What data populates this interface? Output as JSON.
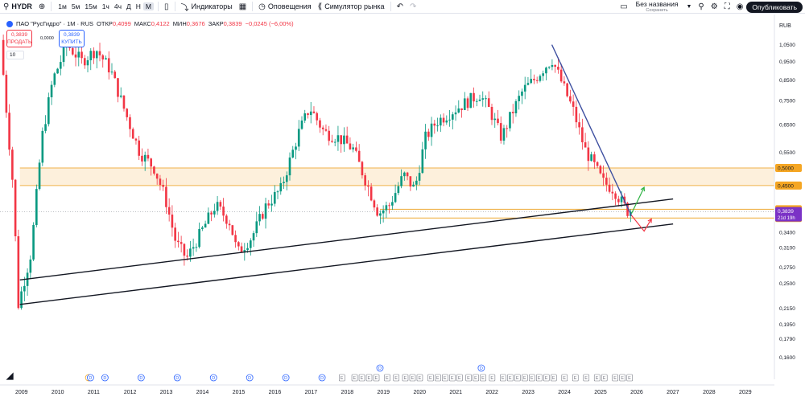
{
  "toolbar": {
    "symbol": "HYDR",
    "intervals": [
      "1м",
      "5м",
      "15м",
      "1ч",
      "4ч",
      "Д",
      "Н",
      "М"
    ],
    "active_interval": "М",
    "indicators_label": "Индикаторы",
    "alerts_label": "Оповещения",
    "replay_label": "Симулятор рынка",
    "layout_name": "Без названия",
    "layout_status": "Сохранить",
    "publish_label": "Опубликовать",
    "icons": [
      "plus-icon",
      "bar-style-icon",
      "indicators-icon",
      "templates-icon",
      "alert-icon",
      "replay-icon",
      "undo-icon",
      "redo-icon",
      "layout-icon",
      "search-icon",
      "settings-icon",
      "camera-icon"
    ]
  },
  "legend": {
    "title": "ПАО \"РусГидро\" · 1M · RUS",
    "open_label": "ОТКР",
    "open": "0,4099",
    "high_label": "МАКС",
    "high": "0,4122",
    "low_label": "МИН",
    "low": "0,3676",
    "close_label": "ЗАКР",
    "close": "0,3839",
    "change": "−0,0245 (−6,00%)",
    "sell_price": "0,3839",
    "sell_label": "ПРОДАТЬ",
    "spread": "0,0000",
    "buy_price": "0,3839",
    "buy_label": "КУПИТЬ",
    "volume_value": "10"
  },
  "colors": {
    "up": "#089981",
    "down": "#f23645",
    "zone_fill": "#fdf0dc",
    "zone_line": "#f0b24a",
    "downtrend_line": "#3d4fa0",
    "support_line": "#131722",
    "last_price": "#7b32c6",
    "arrow_up": "#2fb344",
    "arrow_down": "#f23645"
  },
  "chart_data": {
    "type": "candlestick",
    "currency": "RUB",
    "scale": "log",
    "ylim": [
      0.15,
      1.2
    ],
    "y_ticks": [
      "1,0500",
      "0,9500",
      "0,8500",
      "0,7500",
      "0,6500",
      "0,5500",
      "0,4500",
      "0,3900",
      "0,3400",
      "0,3100",
      "0,2750",
      "0,2500",
      "0,2150",
      "0,1950",
      "0,1790",
      "0,1600"
    ],
    "x_ticks": [
      "2009",
      "2010",
      "2011",
      "2012",
      "2013",
      "2014",
      "2015",
      "2016",
      "2017",
      "2018",
      "2019",
      "2020",
      "2021",
      "2022",
      "2023",
      "2024",
      "2025",
      "2026",
      "2027",
      "2028",
      "2029"
    ],
    "x_range": [
      2008.4,
      2029.8
    ],
    "key_points": [
      [
        2008.45,
        1.08
      ],
      [
        2008.8,
        0.45
      ],
      [
        2008.95,
        0.22
      ],
      [
        2009.3,
        0.3
      ],
      [
        2009.6,
        0.6
      ],
      [
        2009.9,
        0.85
      ],
      [
        2010.3,
        1.05
      ],
      [
        2010.7,
        0.95
      ],
      [
        2011.1,
        1.02
      ],
      [
        2011.5,
        0.9
      ],
      [
        2011.9,
        0.7
      ],
      [
        2012.3,
        0.55
      ],
      [
        2012.7,
        0.5
      ],
      [
        2013.0,
        0.42
      ],
      [
        2013.3,
        0.32
      ],
      [
        2013.6,
        0.29
      ],
      [
        2014.0,
        0.34
      ],
      [
        2014.4,
        0.4
      ],
      [
        2014.8,
        0.36
      ],
      [
        2015.0,
        0.3
      ],
      [
        2015.4,
        0.33
      ],
      [
        2015.8,
        0.4
      ],
      [
        2016.2,
        0.44
      ],
      [
        2016.7,
        0.62
      ],
      [
        2017.0,
        0.72
      ],
      [
        2017.4,
        0.62
      ],
      [
        2017.8,
        0.6
      ],
      [
        2018.2,
        0.56
      ],
      [
        2018.6,
        0.45
      ],
      [
        2018.9,
        0.38
      ],
      [
        2019.2,
        0.4
      ],
      [
        2019.6,
        0.48
      ],
      [
        2019.9,
        0.44
      ],
      [
        2020.2,
        0.6
      ],
      [
        2020.5,
        0.66
      ],
      [
        2020.9,
        0.7
      ],
      [
        2021.3,
        0.74
      ],
      [
        2021.7,
        0.78
      ],
      [
        2022.0,
        0.7
      ],
      [
        2022.3,
        0.6
      ],
      [
        2022.6,
        0.7
      ],
      [
        2022.9,
        0.8
      ],
      [
        2023.2,
        0.85
      ],
      [
        2023.5,
        0.92
      ],
      [
        2023.7,
        0.96
      ],
      [
        2024.0,
        0.82
      ],
      [
        2024.3,
        0.7
      ],
      [
        2024.6,
        0.56
      ],
      [
        2024.9,
        0.5
      ],
      [
        2025.1,
        0.46
      ],
      [
        2025.4,
        0.44
      ],
      [
        2025.6,
        0.41
      ],
      [
        2025.8,
        0.384
      ]
    ],
    "zones": [
      {
        "from": 0.45,
        "to": 0.5
      }
    ],
    "hlines": [
      {
        "value": 0.39,
        "label": "0,3900"
      },
      {
        "value": 0.37,
        "label": "0,3700"
      }
    ],
    "price_labels": [
      {
        "value": 0.5,
        "label": "0,5000"
      },
      {
        "value": 0.45,
        "label": "0,4500"
      },
      {
        "value": 0.39,
        "label": "0,3900"
      },
      {
        "value": 0.37,
        "label": "0,3700"
      }
    ],
    "last_price": {
      "value": 0.3839,
      "label": "0,3839",
      "countdown": "21d 19h"
    },
    "trendlines": [
      {
        "name": "downtrend",
        "from": [
          2023.65,
          1.05
        ],
        "to": [
          2025.85,
          0.375
        ]
      },
      {
        "name": "support-upper",
        "from": [
          2008.95,
          0.255
        ],
        "to": [
          2027.0,
          0.415
        ]
      },
      {
        "name": "support-lower",
        "from": [
          2008.95,
          0.22
        ],
        "to": [
          2027.0,
          0.357
        ]
      }
    ],
    "arrows": [
      {
        "name": "arrow-up",
        "points": [
          [
            2025.85,
            0.38
          ],
          [
            2026.2,
            0.445
          ]
        ]
      },
      {
        "name": "arrow-down",
        "points": [
          [
            2025.85,
            0.376
          ],
          [
            2026.2,
            0.342
          ],
          [
            2026.4,
            0.368
          ]
        ]
      }
    ],
    "events": {
      "dividends": [
        2010.9,
        2011.3,
        2012.3,
        2013.3,
        2014.3,
        2015.3,
        2016.3,
        2017.3
      ],
      "dividends_top": [
        2018.9,
        2021.7
      ],
      "earnings": [
        2017.85,
        2018.2,
        2018.4,
        2018.6,
        2018.8,
        2019.1,
        2019.35,
        2019.6,
        2019.8,
        2020.0,
        2020.3,
        2020.5,
        2020.7,
        2020.9,
        2021.1,
        2021.35,
        2021.55,
        2021.75,
        2022.0,
        2022.3,
        2022.5,
        2022.7,
        2022.9,
        2023.1,
        2023.3,
        2023.5,
        2023.7,
        2024.0,
        2024.3,
        2024.6,
        2024.9,
        2025.1,
        2025.4,
        2025.6,
        2025.8
      ],
      "split_label": "S",
      "split_at": 2010.85,
      "dividend_label": "D",
      "earnings_label": "E"
    }
  }
}
